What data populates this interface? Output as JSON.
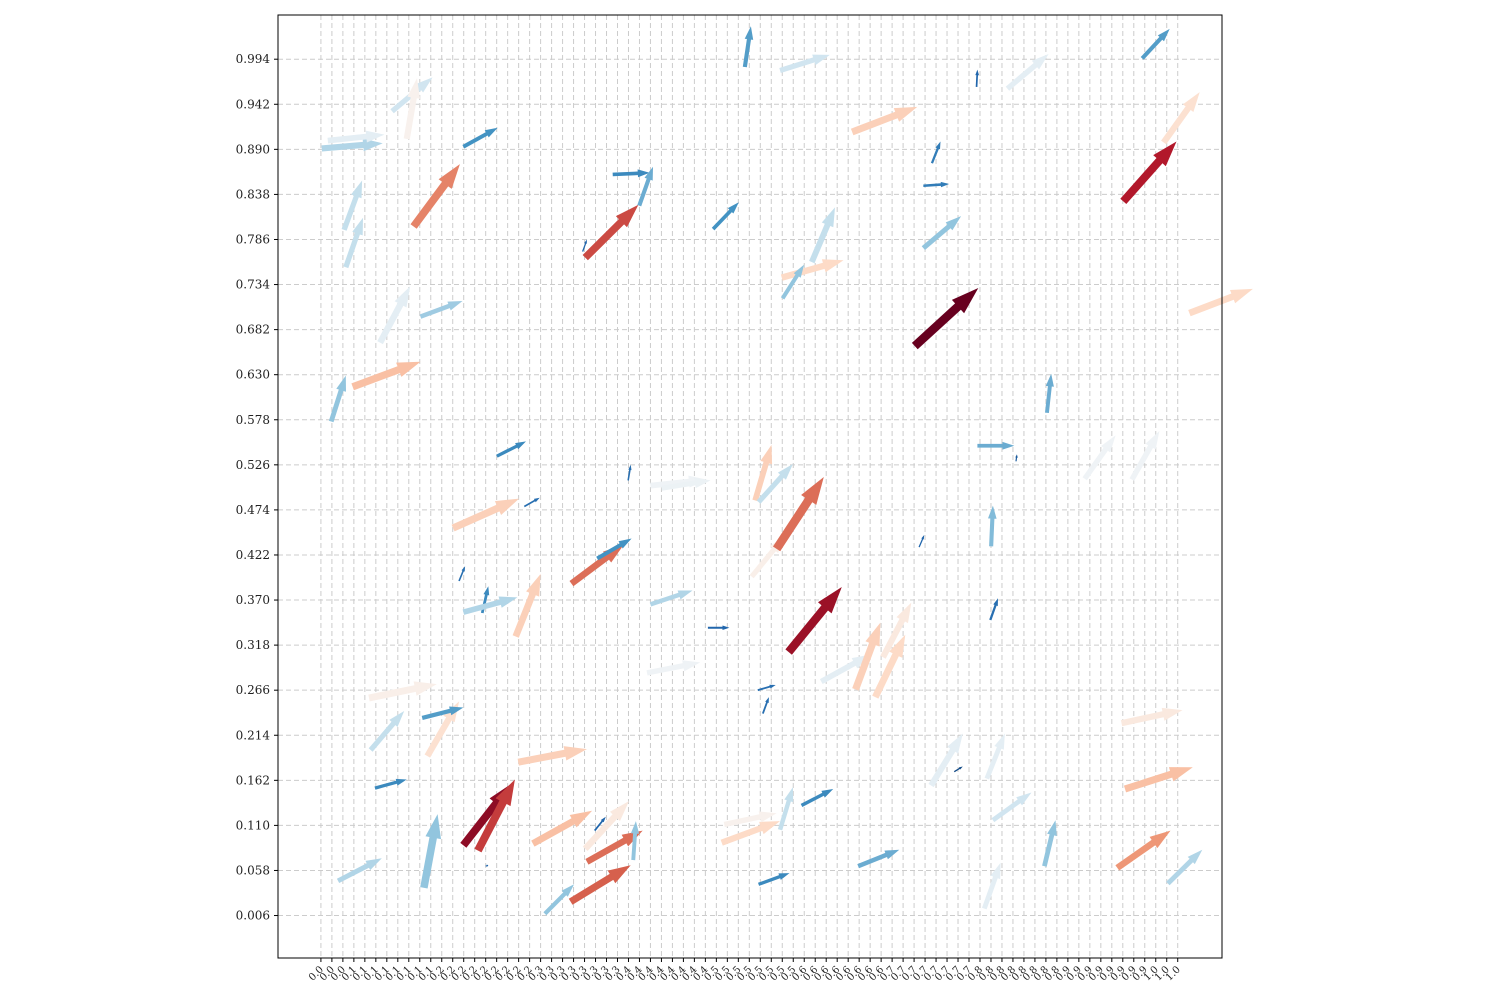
{
  "chart_data": {
    "type": "quiver",
    "title": "",
    "xlabel": "",
    "ylabel": "",
    "grid": true,
    "grid_style": "dashed",
    "colormap": "RdBu_r (color by arrow magnitude)",
    "xlim": [
      -0.05,
      1.05
    ],
    "ylim": [
      -0.043,
      1.045
    ],
    "yticks": [
      0.006,
      0.058,
      0.11,
      0.162,
      0.214,
      0.266,
      0.318,
      0.37,
      0.422,
      0.474,
      0.526,
      0.578,
      0.63,
      0.682,
      0.734,
      0.786,
      0.838,
      0.89,
      0.942,
      0.994
    ],
    "ytick_labels": [
      "0.006",
      "0.058",
      "0.110",
      "0.162",
      "0.214",
      "0.266",
      "0.318",
      "0.370",
      "0.422",
      "0.474",
      "0.526",
      "0.578",
      "0.630",
      "0.682",
      "0.734",
      "0.786",
      "0.838",
      "0.890",
      "0.942",
      "0.994"
    ],
    "xticks_start": 0.0,
    "xticks_step": 0.0128,
    "xtick_labels": [
      "0.0",
      "0.0",
      "0.0",
      "0.1",
      "0.1",
      "0.1",
      "0.1",
      "0.1",
      "0.1",
      "0.1",
      "0.1",
      "0.2",
      "0.2",
      "0.2",
      "0.2",
      "0.2",
      "0.2",
      "0.2",
      "0.2",
      "0.2",
      "0.3",
      "0.3",
      "0.3",
      "0.3",
      "0.3",
      "0.3",
      "0.3",
      "0.3",
      "0.4",
      "0.4",
      "0.4",
      "0.4",
      "0.4",
      "0.4",
      "0.4",
      "0.4",
      "0.5",
      "0.5",
      "0.5",
      "0.5",
      "0.5",
      "0.5",
      "0.5",
      "0.5",
      "0.6",
      "0.6",
      "0.6",
      "0.6",
      "0.6",
      "0.6",
      "0.6",
      "0.6",
      "0.7",
      "0.7",
      "0.7",
      "0.7",
      "0.7",
      "0.7",
      "0.7",
      "0.7",
      "0.8",
      "0.8",
      "0.8",
      "0.8",
      "0.8",
      "0.8",
      "0.8",
      "0.8",
      "0.9",
      "0.9",
      "0.9",
      "0.9",
      "0.9",
      "0.9",
      "0.9",
      "0.9",
      "1.0",
      "1.0",
      "1.0"
    ],
    "arrows": [
      {
        "x": 0.12,
        "y": 0.038,
        "u": 0.016,
        "v": 0.085,
        "c": 0.3
      },
      {
        "x": 0.02,
        "y": 0.046,
        "u": 0.051,
        "v": 0.026,
        "c": 0.35
      },
      {
        "x": 0.192,
        "y": 0.063,
        "u": 0.003,
        "v": 0.001,
        "c": 0.1
      },
      {
        "x": 0.166,
        "y": 0.087,
        "u": 0.056,
        "v": 0.071,
        "c": 0.95
      },
      {
        "x": 0.183,
        "y": 0.081,
        "u": 0.043,
        "v": 0.082,
        "c": 0.85
      },
      {
        "x": 0.247,
        "y": 0.089,
        "u": 0.069,
        "v": 0.038,
        "c": 0.65
      },
      {
        "x": 0.261,
        "y": 0.008,
        "u": 0.034,
        "v": 0.034,
        "c": 0.3
      },
      {
        "x": 0.291,
        "y": 0.022,
        "u": 0.07,
        "v": 0.042,
        "c": 0.8
      },
      {
        "x": 0.31,
        "y": 0.068,
        "u": 0.065,
        "v": 0.036,
        "c": 0.78
      },
      {
        "x": 0.308,
        "y": 0.083,
        "u": 0.051,
        "v": 0.055,
        "c": 0.55
      },
      {
        "x": 0.319,
        "y": 0.104,
        "u": 0.013,
        "v": 0.016,
        "c": 0.1
      },
      {
        "x": 0.364,
        "y": 0.07,
        "u": 0.003,
        "v": 0.045,
        "c": 0.3
      },
      {
        "x": 0.467,
        "y": 0.09,
        "u": 0.068,
        "v": 0.025,
        "c": 0.6
      },
      {
        "x": 0.47,
        "y": 0.111,
        "u": 0.061,
        "v": 0.013,
        "c": 0.52
      },
      {
        "x": 0.535,
        "y": 0.105,
        "u": 0.015,
        "v": 0.049,
        "c": 0.38
      },
      {
        "x": 0.51,
        "y": 0.042,
        "u": 0.036,
        "v": 0.013,
        "c": 0.18
      },
      {
        "x": 0.56,
        "y": 0.133,
        "u": 0.037,
        "v": 0.019,
        "c": 0.18
      },
      {
        "x": 0.626,
        "y": 0.063,
        "u": 0.048,
        "v": 0.019,
        "c": 0.25
      },
      {
        "x": 0.738,
        "y": 0.172,
        "u": 0.01,
        "v": 0.006,
        "c": 0.05
      },
      {
        "x": 0.773,
        "y": 0.014,
        "u": 0.019,
        "v": 0.053,
        "c": 0.45
      },
      {
        "x": 0.776,
        "y": 0.164,
        "u": 0.021,
        "v": 0.052,
        "c": 0.45
      },
      {
        "x": 0.783,
        "y": 0.116,
        "u": 0.045,
        "v": 0.032,
        "c": 0.4
      },
      {
        "x": 0.843,
        "y": 0.063,
        "u": 0.013,
        "v": 0.053,
        "c": 0.3
      },
      {
        "x": 0.928,
        "y": 0.061,
        "u": 0.062,
        "v": 0.043,
        "c": 0.72
      },
      {
        "x": 0.937,
        "y": 0.152,
        "u": 0.079,
        "v": 0.025,
        "c": 0.65
      },
      {
        "x": 0.933,
        "y": 0.228,
        "u": 0.071,
        "v": 0.015,
        "c": 0.55
      },
      {
        "x": 0.987,
        "y": 0.043,
        "u": 0.04,
        "v": 0.039,
        "c": 0.35
      },
      {
        "x": 0.063,
        "y": 0.153,
        "u": 0.037,
        "v": 0.01,
        "c": 0.18
      },
      {
        "x": 0.23,
        "y": 0.183,
        "u": 0.08,
        "v": 0.015,
        "c": 0.62
      },
      {
        "x": 0.058,
        "y": 0.197,
        "u": 0.039,
        "v": 0.045,
        "c": 0.38
      },
      {
        "x": 0.124,
        "y": 0.19,
        "u": 0.037,
        "v": 0.063,
        "c": 0.58
      },
      {
        "x": 0.056,
        "y": 0.257,
        "u": 0.079,
        "v": 0.016,
        "c": 0.53
      },
      {
        "x": 0.118,
        "y": 0.234,
        "u": 0.048,
        "v": 0.012,
        "c": 0.22
      },
      {
        "x": 0.188,
        "y": 0.355,
        "u": 0.007,
        "v": 0.031,
        "c": 0.18
      },
      {
        "x": 0.166,
        "y": 0.356,
        "u": 0.063,
        "v": 0.017,
        "c": 0.35
      },
      {
        "x": 0.227,
        "y": 0.328,
        "u": 0.029,
        "v": 0.072,
        "c": 0.62
      },
      {
        "x": 0.161,
        "y": 0.392,
        "u": 0.007,
        "v": 0.017,
        "c": 0.12
      },
      {
        "x": 0.292,
        "y": 0.389,
        "u": 0.061,
        "v": 0.045,
        "c": 0.78
      },
      {
        "x": 0.322,
        "y": 0.418,
        "u": 0.04,
        "v": 0.023,
        "c": 0.2
      },
      {
        "x": 0.154,
        "y": 0.453,
        "u": 0.077,
        "v": 0.034,
        "c": 0.62
      },
      {
        "x": 0.205,
        "y": 0.536,
        "u": 0.034,
        "v": 0.017,
        "c": 0.18
      },
      {
        "x": 0.237,
        "y": 0.478,
        "u": 0.018,
        "v": 0.01,
        "c": 0.12
      },
      {
        "x": 0.384,
        "y": 0.365,
        "u": 0.049,
        "v": 0.016,
        "c": 0.35
      },
      {
        "x": 0.38,
        "y": 0.286,
        "u": 0.062,
        "v": 0.012,
        "c": 0.48
      },
      {
        "x": 0.451,
        "y": 0.338,
        "u": 0.025,
        "v": 0.0,
        "c": 0.1
      },
      {
        "x": 0.384,
        "y": 0.502,
        "u": 0.066,
        "v": 0.007,
        "c": 0.48
      },
      {
        "x": 0.358,
        "y": 0.508,
        "u": 0.003,
        "v": 0.018,
        "c": 0.12
      },
      {
        "x": 0.397,
        "y": 0.499,
        "u": 0.057,
        "v": 0.009,
        "c": 0.47
      },
      {
        "x": 0.509,
        "y": 0.266,
        "u": 0.021,
        "v": 0.006,
        "c": 0.12
      },
      {
        "x": 0.515,
        "y": 0.239,
        "u": 0.007,
        "v": 0.019,
        "c": 0.12
      },
      {
        "x": 0.502,
        "y": 0.397,
        "u": 0.038,
        "v": 0.046,
        "c": 0.53
      },
      {
        "x": 0.506,
        "y": 0.485,
        "u": 0.019,
        "v": 0.064,
        "c": 0.62
      },
      {
        "x": 0.51,
        "y": 0.483,
        "u": 0.04,
        "v": 0.044,
        "c": 0.38
      },
      {
        "x": 0.531,
        "y": 0.429,
        "u": 0.055,
        "v": 0.083,
        "c": 0.78
      },
      {
        "x": 0.545,
        "y": 0.31,
        "u": 0.062,
        "v": 0.075,
        "c": 0.93
      },
      {
        "x": 0.583,
        "y": 0.276,
        "u": 0.057,
        "v": 0.031,
        "c": 0.45
      },
      {
        "x": 0.623,
        "y": 0.267,
        "u": 0.029,
        "v": 0.077,
        "c": 0.62
      },
      {
        "x": 0.646,
        "y": 0.258,
        "u": 0.035,
        "v": 0.072,
        "c": 0.6
      },
      {
        "x": 0.655,
        "y": 0.304,
        "u": 0.033,
        "v": 0.063,
        "c": 0.55
      },
      {
        "x": 0.697,
        "y": 0.431,
        "u": 0.006,
        "v": 0.014,
        "c": 0.1
      },
      {
        "x": 0.711,
        "y": 0.156,
        "u": 0.037,
        "v": 0.06,
        "c": 0.45
      },
      {
        "x": 0.765,
        "y": 0.548,
        "u": 0.043,
        "v": 0.0,
        "c": 0.25
      },
      {
        "x": 0.781,
        "y": 0.432,
        "u": 0.002,
        "v": 0.047,
        "c": 0.28
      },
      {
        "x": 0.78,
        "y": 0.347,
        "u": 0.009,
        "v": 0.025,
        "c": 0.12
      },
      {
        "x": 0.81,
        "y": 0.53,
        "u": 0.001,
        "v": 0.008,
        "c": 0.08
      },
      {
        "x": 0.89,
        "y": 0.51,
        "u": 0.036,
        "v": 0.05,
        "c": 0.48
      },
      {
        "x": 0.846,
        "y": 0.586,
        "u": 0.005,
        "v": 0.045,
        "c": 0.25
      },
      {
        "x": 0.012,
        "y": 0.576,
        "u": 0.017,
        "v": 0.053,
        "c": 0.3
      },
      {
        "x": 0.037,
        "y": 0.616,
        "u": 0.079,
        "v": 0.029,
        "c": 0.65
      },
      {
        "x": 0.069,
        "y": 0.667,
        "u": 0.035,
        "v": 0.065,
        "c": 0.45
      },
      {
        "x": 0.116,
        "y": 0.697,
        "u": 0.049,
        "v": 0.018,
        "c": 0.32
      },
      {
        "x": 0.029,
        "y": 0.754,
        "u": 0.02,
        "v": 0.057,
        "c": 0.38
      },
      {
        "x": 0.027,
        "y": 0.797,
        "u": 0.021,
        "v": 0.057,
        "c": 0.38
      },
      {
        "x": 0.108,
        "y": 0.801,
        "u": 0.054,
        "v": 0.072,
        "c": 0.75
      },
      {
        "x": 0.001,
        "y": 0.891,
        "u": 0.071,
        "v": 0.006,
        "c": 0.35
      },
      {
        "x": 0.008,
        "y": 0.9,
        "u": 0.066,
        "v": 0.007,
        "c": 0.45
      },
      {
        "x": 0.083,
        "y": 0.934,
        "u": 0.047,
        "v": 0.039,
        "c": 0.4
      },
      {
        "x": 0.1,
        "y": 0.902,
        "u": 0.012,
        "v": 0.07,
        "c": 0.52
      },
      {
        "x": 0.166,
        "y": 0.893,
        "u": 0.04,
        "v": 0.022,
        "c": 0.2
      },
      {
        "x": 0.308,
        "y": 0.765,
        "u": 0.062,
        "v": 0.061,
        "c": 0.83
      },
      {
        "x": 0.305,
        "y": 0.772,
        "u": 0.005,
        "v": 0.014,
        "c": 0.1
      },
      {
        "x": 0.34,
        "y": 0.861,
        "u": 0.043,
        "v": 0.002,
        "c": 0.18
      },
      {
        "x": 0.371,
        "y": 0.825,
        "u": 0.016,
        "v": 0.045,
        "c": 0.25
      },
      {
        "x": 0.457,
        "y": 0.798,
        "u": 0.03,
        "v": 0.031,
        "c": 0.2
      },
      {
        "x": 0.494,
        "y": 0.985,
        "u": 0.007,
        "v": 0.047,
        "c": 0.22
      },
      {
        "x": 0.535,
        "y": 0.981,
        "u": 0.058,
        "v": 0.018,
        "c": 0.4
      },
      {
        "x": 0.537,
        "y": 0.742,
        "u": 0.072,
        "v": 0.02,
        "c": 0.6
      },
      {
        "x": 0.572,
        "y": 0.76,
        "u": 0.027,
        "v": 0.063,
        "c": 0.38
      },
      {
        "x": 0.538,
        "y": 0.718,
        "u": 0.025,
        "v": 0.039,
        "c": 0.3
      },
      {
        "x": 0.619,
        "y": 0.91,
        "u": 0.076,
        "v": 0.029,
        "c": 0.62
      },
      {
        "x": 0.702,
        "y": 0.776,
        "u": 0.044,
        "v": 0.037,
        "c": 0.3
      },
      {
        "x": 0.702,
        "y": 0.848,
        "u": 0.03,
        "v": 0.002,
        "c": 0.15
      },
      {
        "x": 0.712,
        "y": 0.874,
        "u": 0.01,
        "v": 0.025,
        "c": 0.15
      },
      {
        "x": 0.692,
        "y": 0.663,
        "u": 0.074,
        "v": 0.067,
        "c": 1.0
      },
      {
        "x": 0.764,
        "y": 0.962,
        "u": 0.001,
        "v": 0.02,
        "c": 0.1
      },
      {
        "x": 0.8,
        "y": 0.96,
        "u": 0.048,
        "v": 0.04,
        "c": 0.45
      },
      {
        "x": 0.935,
        "y": 0.83,
        "u": 0.062,
        "v": 0.069,
        "c": 0.9
      },
      {
        "x": 0.982,
        "y": 0.898,
        "u": 0.042,
        "v": 0.058,
        "c": 0.58
      },
      {
        "x": 0.957,
        "y": 0.995,
        "u": 0.032,
        "v": 0.034,
        "c": 0.22
      },
      {
        "x": 0.945,
        "y": 0.509,
        "u": 0.032,
        "v": 0.056,
        "c": 0.48
      },
      {
        "x": 1.012,
        "y": 0.701,
        "u": 0.074,
        "v": 0.028,
        "c": 0.6
      }
    ]
  }
}
